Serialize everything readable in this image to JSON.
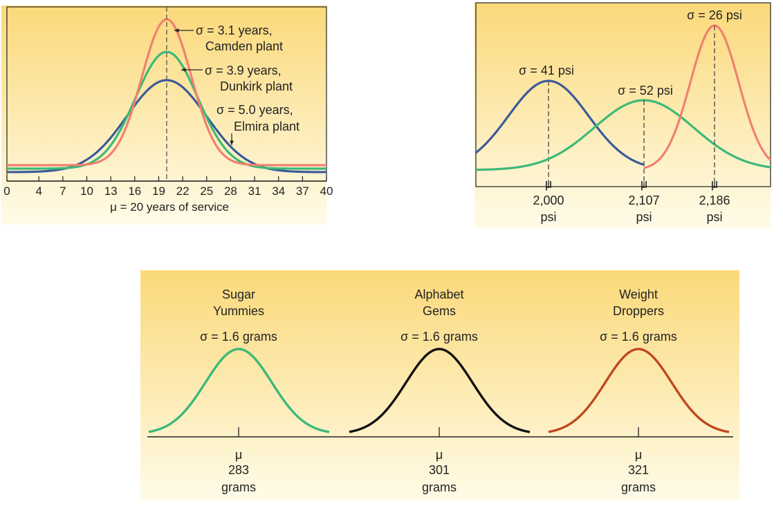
{
  "colors": {
    "panel_top": "#fbd97a",
    "panel_bottom": "#fffbe8",
    "orange": "#f08070",
    "green": "#3cb878",
    "blue": "#3a5a9a",
    "black": "#111111",
    "rust": "#c0481e",
    "axis": "#222222"
  },
  "chart_data": [
    {
      "type": "line",
      "id": "service-life",
      "x_ticks": [
        0,
        4,
        7,
        10,
        13,
        16,
        19,
        22,
        25,
        28,
        31,
        34,
        37,
        40
      ],
      "x_tick_labels": [
        "0",
        "4",
        "7",
        "10",
        "13",
        "16",
        "19",
        "22",
        "25",
        "28",
        "31",
        "34",
        "37",
        "40"
      ],
      "xlim": [
        0,
        40
      ],
      "xlabel": "μ = 20 years of service",
      "mean_marker": 20,
      "series": [
        {
          "label_line1": "σ = 3.1 years,",
          "label_line2": "Camden plant",
          "mean": 20,
          "sd": 3.1,
          "color": "orange"
        },
        {
          "label_line1": "σ = 3.9 years,",
          "label_line2": "Dunkirk plant",
          "mean": 20,
          "sd": 3.9,
          "color": "green"
        },
        {
          "label_line1": "σ = 5.0 years,",
          "label_line2": "Elmira plant",
          "mean": 20,
          "sd": 5.0,
          "color": "blue"
        }
      ]
    },
    {
      "type": "line",
      "id": "strength-psi",
      "series": [
        {
          "label": "σ = 41 psi",
          "mean": 2000,
          "sd": 41,
          "color": "blue",
          "mu_symbol": "μ",
          "mu_value": "2,000",
          "unit": "psi"
        },
        {
          "label": "σ = 52 psi",
          "mean": 2107,
          "sd": 52,
          "color": "green",
          "mu_symbol": "μ",
          "mu_value": "2,107",
          "unit": "psi"
        },
        {
          "label": "σ = 26 psi",
          "mean": 2186,
          "sd": 26,
          "color": "orange",
          "mu_symbol": "μ",
          "mu_value": "2,186",
          "unit": "psi"
        }
      ]
    },
    {
      "type": "line",
      "id": "cereal-weights",
      "series": [
        {
          "name_line1": "Sugar",
          "name_line2": "Yummies",
          "sigma_label": "σ = 1.6 grams",
          "mean": 283,
          "sd": 1.6,
          "color": "green",
          "mu_symbol": "μ",
          "mu_value": "283",
          "unit": "grams"
        },
        {
          "name_line1": "Alphabet",
          "name_line2": "Gems",
          "sigma_label": "σ = 1.6 grams",
          "mean": 301,
          "sd": 1.6,
          "color": "black",
          "mu_symbol": "μ",
          "mu_value": "301",
          "unit": "grams"
        },
        {
          "name_line1": "Weight",
          "name_line2": "Droppers",
          "sigma_label": "σ = 1.6 grams",
          "mean": 321,
          "sd": 1.6,
          "color": "rust",
          "mu_symbol": "μ",
          "mu_value": "321",
          "unit": "grams"
        }
      ]
    }
  ]
}
